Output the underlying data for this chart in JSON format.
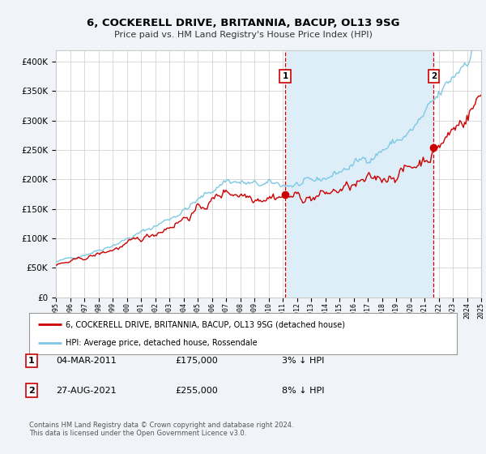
{
  "title": "6, COCKERELL DRIVE, BRITANNIA, BACUP, OL13 9SG",
  "subtitle": "Price paid vs. HM Land Registry's House Price Index (HPI)",
  "legend_line1": "6, COCKERELL DRIVE, BRITANNIA, BACUP, OL13 9SG (detached house)",
  "legend_line2": "HPI: Average price, detached house, Rossendale",
  "annotation1_label": "1",
  "annotation1_date": "04-MAR-2011",
  "annotation1_price": "£175,000",
  "annotation1_hpi": "3% ↓ HPI",
  "annotation2_label": "2",
  "annotation2_date": "27-AUG-2021",
  "annotation2_price": "£255,000",
  "annotation2_hpi": "8% ↓ HPI",
  "footnote": "Contains HM Land Registry data © Crown copyright and database right 2024.\nThis data is licensed under the Open Government Licence v3.0.",
  "hpi_color": "#7ec8e3",
  "price_color": "#cc0000",
  "vline_color": "#cc0000",
  "shade_color": "#ddeef8",
  "background_color": "#f0f4f8",
  "plot_bg_color": "#ffffff",
  "grid_color": "#cccccc",
  "ylim_min": 0,
  "ylim_max": 420000,
  "yticks": [
    0,
    50000,
    100000,
    150000,
    200000,
    250000,
    300000,
    350000,
    400000
  ],
  "year_start": 1995,
  "year_end": 2025,
  "purchase1_year": 2011.17,
  "purchase1_value": 175000,
  "purchase2_year": 2021.65,
  "purchase2_value": 255000
}
